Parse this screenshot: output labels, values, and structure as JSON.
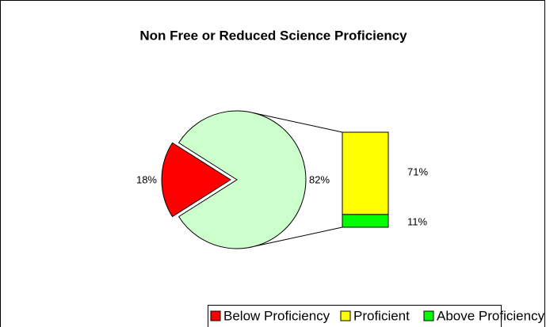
{
  "chart_data": {
    "type": "barofpie",
    "title": "Non Free or Reduced Science Proficiency",
    "pie": {
      "categories": [
        "Below Proficiency",
        null
      ],
      "values": [
        18,
        82
      ],
      "value_labels": [
        "18%",
        "82%"
      ],
      "colors": [
        "#ff0000",
        "#ccffcc"
      ]
    },
    "bar": {
      "categories": [
        "Proficient",
        "Above Proficiency"
      ],
      "values": [
        71,
        11
      ],
      "value_labels": [
        "71%",
        "11%"
      ],
      "colors": [
        "#ffff00",
        "#00ff00"
      ]
    },
    "legend": "bottom"
  }
}
